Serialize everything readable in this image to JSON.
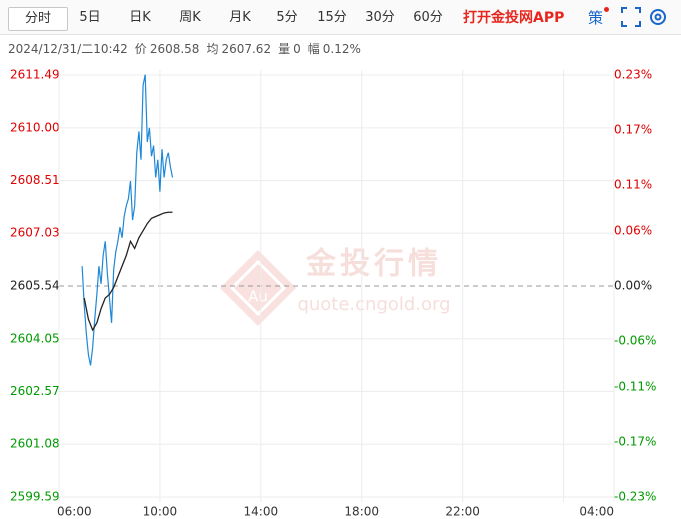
{
  "tabs": [
    "分时",
    "5日",
    "日K",
    "周K",
    "月K",
    "5分",
    "15分",
    "30分",
    "60分"
  ],
  "selected_tab": 0,
  "app_link": "打开金投网APP",
  "strategy": "策",
  "info": {
    "time": "2024/12/31/二10:42",
    "price_label": "价",
    "price": "2608.58",
    "avg_label": "均",
    "avg": "2607.62",
    "volume_label": "量",
    "volume": "0",
    "change_label": "幅",
    "change": "0.12%"
  },
  "watermark": {
    "brand": "金投行情",
    "site": "quote.cngold.org",
    "symbol": "Au"
  },
  "chart_data": {
    "type": "line",
    "base": 2605.54,
    "xlim": [
      "06:00",
      "04:00"
    ],
    "xticks": [
      "06:00",
      "10:00",
      "14:00",
      "18:00",
      "22:00",
      "04:00"
    ],
    "xgrid": [
      "10:00",
      "14:00",
      "18:00",
      "22:00",
      "02:00"
    ],
    "ylim": [
      2599.59,
      2611.49
    ],
    "yticks": [
      2611.49,
      {
        "value": 2610,
        "label": "2610.00"
      },
      2608.51,
      2607.03,
      2605.54,
      2604.05,
      2602.57,
      2601.08,
      2599.59
    ],
    "y2lim": [
      -0.23,
      0.23
    ],
    "y2ticks": [
      {
        "value": 0.23,
        "label": "0.23%"
      },
      {
        "value": 0.17,
        "label": "0.17%"
      },
      {
        "value": 0.11,
        "label": "0.11%"
      },
      {
        "value": 0.06,
        "label": "0.06%"
      },
      {
        "value": 0,
        "label": "0.00%"
      },
      {
        "value": -0.06,
        "label": "-0.06%"
      },
      {
        "value": -0.11,
        "label": "-0.11%"
      },
      {
        "value": -0.17,
        "label": "-0.17%"
      },
      {
        "value": -0.23,
        "label": "-0.23%"
      }
    ],
    "grid": true,
    "series": [
      {
        "name": "价",
        "color": "#1e88d6",
        "x": [
          "06:55",
          "07:00",
          "07:05",
          "07:10",
          "07:15",
          "07:20",
          "07:25",
          "07:30",
          "07:35",
          "07:40",
          "07:45",
          "07:50",
          "07:55",
          "08:00",
          "08:05",
          "08:10",
          "08:15",
          "08:20",
          "08:25",
          "08:30",
          "08:35",
          "08:40",
          "08:45",
          "08:50",
          "08:55",
          "09:00",
          "09:05",
          "09:10",
          "09:15",
          "09:20",
          "09:25",
          "09:30",
          "09:35",
          "09:40",
          "09:45",
          "09:50",
          "09:55",
          "10:00",
          "10:05",
          "10:10",
          "10:15",
          "10:20",
          "10:25",
          "10:30"
        ],
        "values": [
          2606.1,
          2605.0,
          2604.2,
          2603.6,
          2603.3,
          2603.8,
          2604.6,
          2605.3,
          2606.1,
          2605.6,
          2606.4,
          2606.8,
          2605.9,
          2605.2,
          2604.5,
          2606.0,
          2606.5,
          2606.8,
          2607.2,
          2606.9,
          2607.5,
          2607.8,
          2608.0,
          2608.5,
          2607.4,
          2607.8,
          2609.3,
          2609.9,
          2609.1,
          2611.2,
          2611.5,
          2609.6,
          2610.0,
          2609.2,
          2609.5,
          2608.6,
          2609.1,
          2608.2,
          2609.4,
          2608.6,
          2609.1,
          2609.3,
          2608.9,
          2608.6
        ]
      },
      {
        "name": "均",
        "color": "#222222",
        "x": [
          "07:00",
          "07:10",
          "07:20",
          "07:30",
          "07:40",
          "07:50",
          "08:00",
          "08:10",
          "08:20",
          "08:30",
          "08:40",
          "08:50",
          "09:00",
          "09:10",
          "09:20",
          "09:30",
          "09:40",
          "09:50",
          "10:00",
          "10:10",
          "10:20",
          "10:30"
        ],
        "values": [
          2605.2,
          2604.6,
          2604.3,
          2604.5,
          2604.9,
          2605.2,
          2605.3,
          2605.5,
          2605.8,
          2606.1,
          2606.4,
          2606.8,
          2606.6,
          2606.9,
          2607.1,
          2607.3,
          2607.45,
          2607.5,
          2607.55,
          2607.6,
          2607.62,
          2607.62
        ]
      }
    ],
    "up_color": "#e00000",
    "down_color": "#009a00",
    "flat_color": "#222222"
  }
}
